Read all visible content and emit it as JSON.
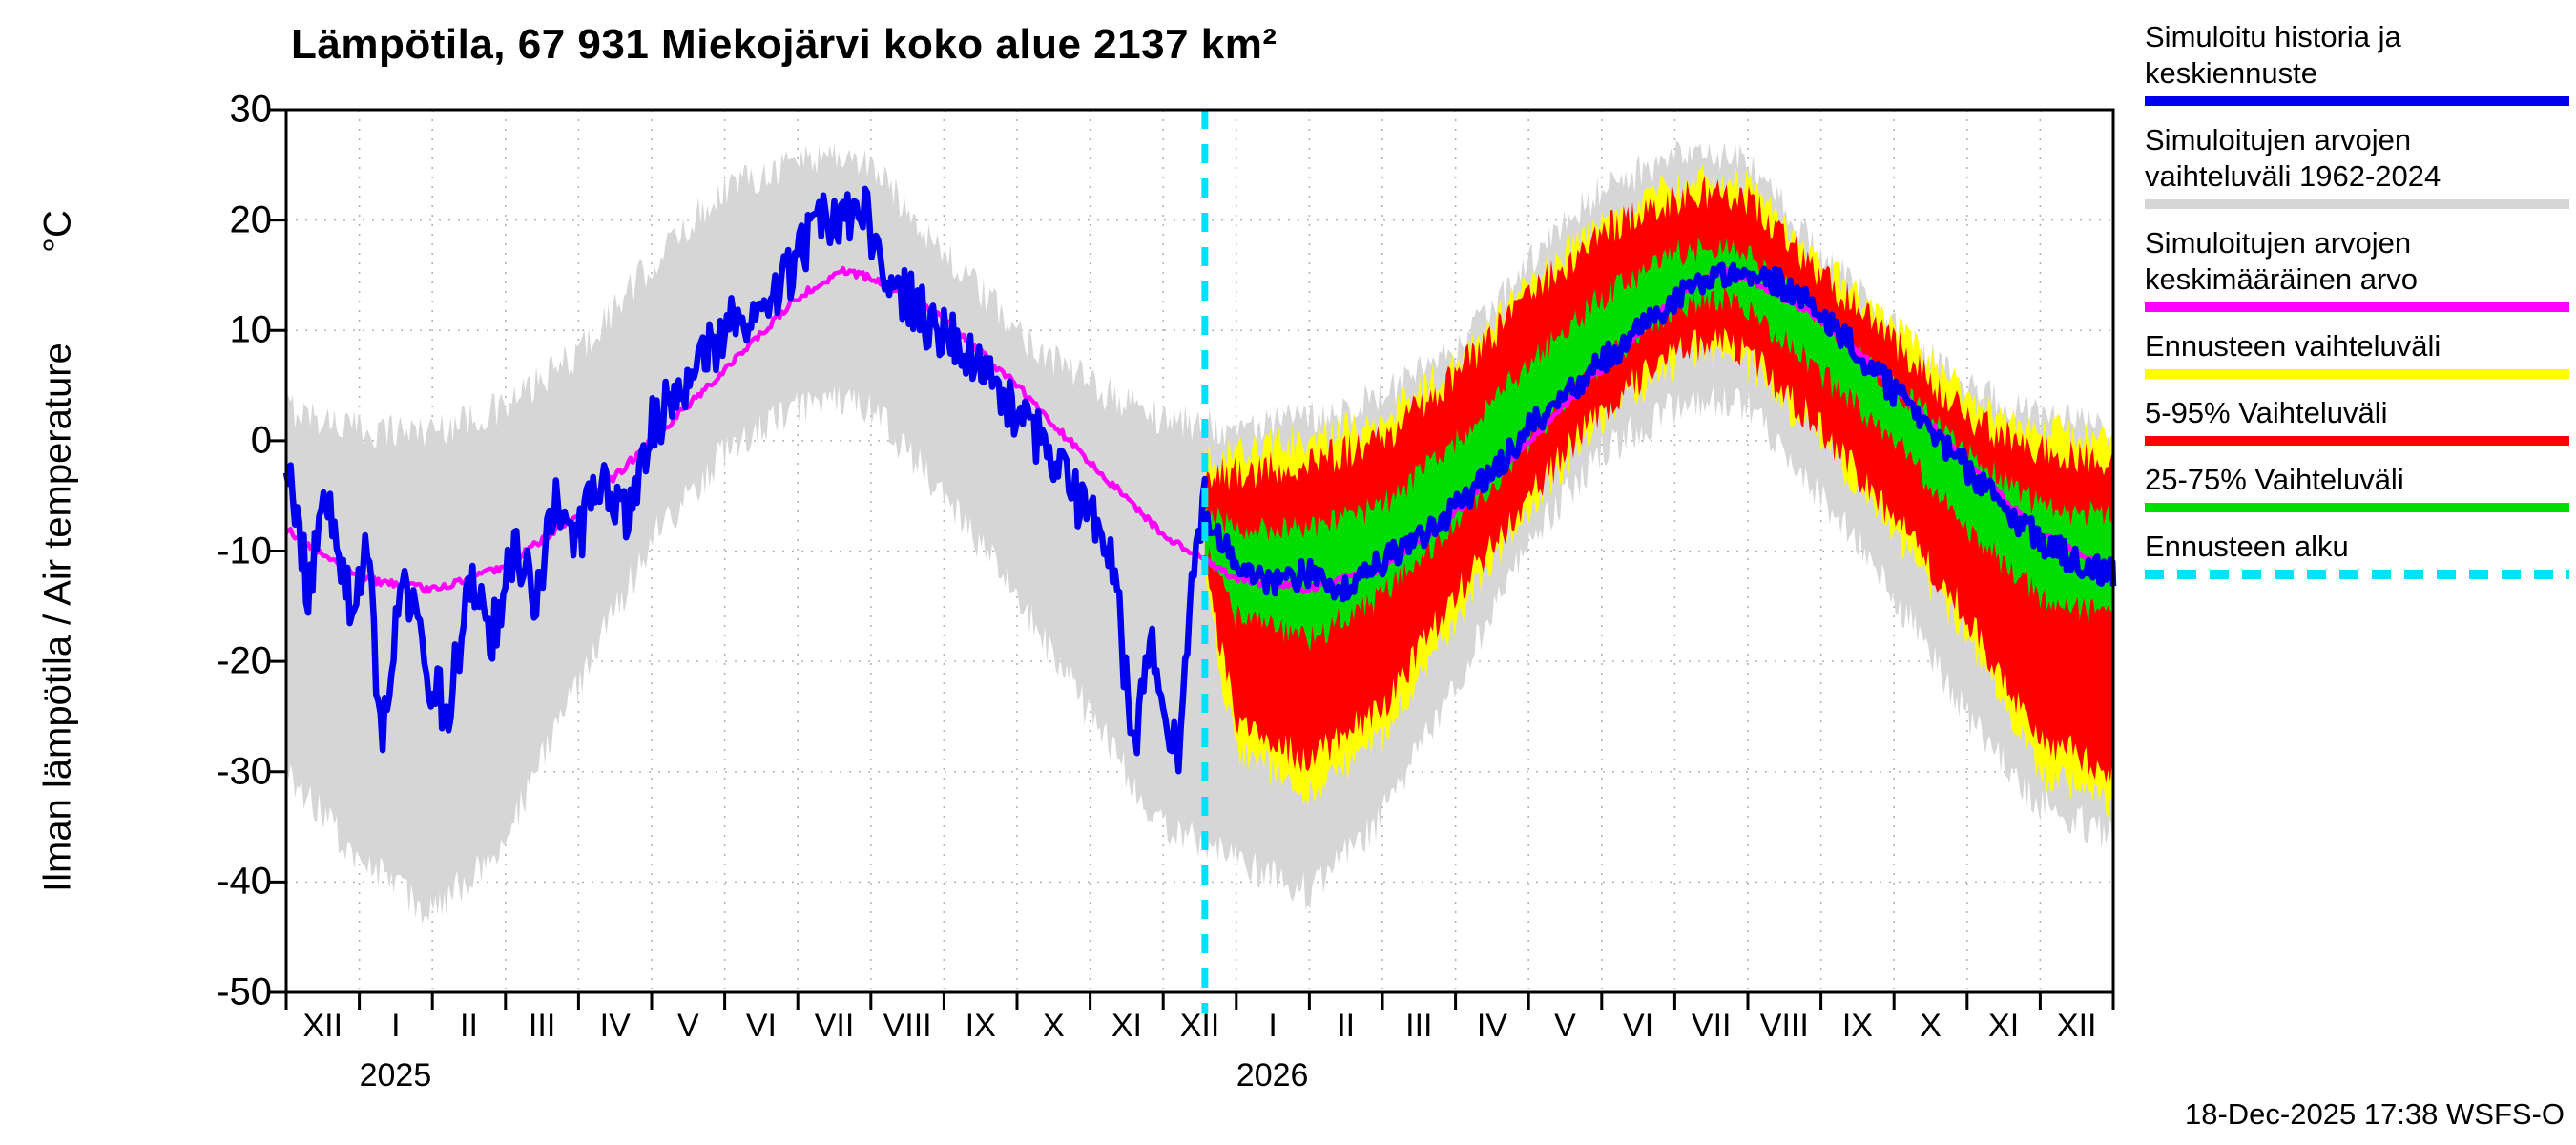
{
  "chart_data": {
    "type": "line",
    "title": "Lämpötila, 67 931 Miekojärvi koko alue 2137 km²",
    "ylabel": "Ilman lämpötila / Air temperature",
    "ylabel_unit": "°C",
    "ylim": [
      -50,
      30
    ],
    "yticks": [
      30,
      20,
      10,
      0,
      -10,
      -20,
      -30,
      -40,
      -50
    ],
    "x_months_total": 25,
    "month_labels": [
      "XII",
      "I",
      "II",
      "III",
      "IV",
      "V",
      "VI",
      "VII",
      "VIII",
      "IX",
      "X",
      "XI",
      "XII",
      "I",
      "II",
      "III",
      "IV",
      "V",
      "VI",
      "VII",
      "VIII",
      "IX",
      "X",
      "XI",
      "XII"
    ],
    "year_labels": [
      {
        "text": "2025",
        "at_month_boundary": 1
      },
      {
        "text": "2026",
        "at_month_boundary": 13
      }
    ],
    "forecast_start_x": 12.57,
    "grid": true,
    "legend_position": "right",
    "timestamp": "18-Dec-2025 17:38 WSFS-O",
    "colors": {
      "history_line": "#0000ee",
      "history_range": "#d6d6d6",
      "history_mean": "#ff00ff",
      "forecast_range": "#ffff00",
      "range_5_95": "#ff0000",
      "range_25_75": "#00dd00",
      "forecast_start": "#00e0ff",
      "grid": "#b3b3b3",
      "frame": "#000000"
    },
    "bands": [
      {
        "name": "sim-range-1962-2024",
        "color": "#d6d6d6",
        "noise": 1.7,
        "x": [
          0,
          1,
          2,
          3,
          4,
          5,
          6,
          7,
          7.5,
          8,
          9,
          10,
          11,
          12,
          13,
          14,
          15,
          16,
          17,
          18,
          19,
          19.5,
          20,
          21,
          22,
          23,
          24,
          25
        ],
        "upper": [
          3,
          1,
          1,
          3,
          8,
          16,
          23,
          25.5,
          26,
          25,
          17,
          10,
          5,
          2,
          1,
          2,
          4,
          8,
          16,
          23,
          25.5,
          26,
          25,
          17,
          10,
          5,
          2,
          1
        ],
        "lower": [
          -30,
          -38,
          -43,
          -36,
          -22,
          -9,
          -1,
          3,
          4,
          3,
          -5,
          -14,
          -25,
          -35,
          -38,
          -41,
          -34,
          -22,
          -9,
          -1,
          3,
          4,
          3,
          -5,
          -14,
          -25,
          -33,
          -36
        ]
      },
      {
        "name": "forecast-range",
        "color": "#ffff00",
        "noise": 1.7,
        "x": [
          12.57,
          13,
          14,
          15,
          16,
          17,
          18,
          19,
          19.5,
          20,
          21,
          22,
          23,
          24,
          25
        ],
        "upper": [
          -2,
          -1,
          0,
          2,
          7,
          14,
          20,
          23,
          23.5,
          23,
          16,
          10,
          4,
          1,
          0
        ],
        "lower": [
          -13,
          -28,
          -32,
          -27,
          -16,
          -6,
          2,
          7,
          8,
          7,
          0,
          -8,
          -18,
          -30,
          -33
        ]
      },
      {
        "name": "range-5-95",
        "color": "#ff0000",
        "noise": 1.6,
        "x": [
          12.57,
          13,
          14,
          15,
          16,
          17,
          18,
          19,
          19.5,
          20,
          21,
          22,
          23,
          24,
          25
        ],
        "upper": [
          -3,
          -3,
          -2,
          0,
          6,
          13,
          19,
          22,
          22.5,
          22,
          15,
          9,
          2,
          -1,
          -2
        ],
        "lower": [
          -12,
          -25,
          -29,
          -24,
          -14,
          -5,
          3,
          8,
          9,
          8,
          1,
          -7,
          -16,
          -27,
          -30
        ]
      },
      {
        "name": "range-25-75",
        "color": "#00dd00",
        "noise": 1.3,
        "x": [
          12.57,
          13,
          14,
          15,
          16,
          17,
          18,
          19,
          19.5,
          20,
          21,
          22,
          23,
          24,
          25
        ],
        "upper": [
          -6,
          -8,
          -8,
          -6,
          0,
          7,
          13,
          17,
          17.5,
          17,
          11,
          5,
          -1,
          -6,
          -7
        ],
        "lower": [
          -10,
          -16,
          -18,
          -14,
          -8,
          0,
          7,
          12,
          13,
          12,
          6,
          0,
          -8,
          -14,
          -16
        ]
      }
    ],
    "lines": [
      {
        "name": "sim-mean-1962-2024",
        "color": "#ff00ff",
        "width": 4.5,
        "noise": 0.35,
        "x": [
          0,
          1,
          2,
          3,
          4,
          5,
          6,
          7,
          7.6,
          8,
          9,
          10,
          11,
          12,
          13,
          14,
          15,
          16,
          17,
          18,
          19,
          19.6,
          20,
          21,
          22,
          23,
          24,
          25
        ],
        "y": [
          -8,
          -12.5,
          -13.5,
          -11.5,
          -6.5,
          0,
          6.5,
          13,
          15.4,
          14.8,
          11,
          5,
          -2,
          -8.5,
          -12.5,
          -13.5,
          -11.5,
          -6.5,
          0,
          6.5,
          13,
          15.4,
          14.8,
          11,
          5,
          -2,
          -8.5,
          -12
        ]
      },
      {
        "name": "sim-history",
        "color": "#0000ee",
        "width": 6.5,
        "noise": 2.8,
        "x": [
          0,
          0.3,
          0.6,
          0.9,
          1.1,
          1.3,
          1.6,
          1.9,
          2.2,
          2.5,
          2.8,
          3.1,
          3.4,
          3.7,
          4.0,
          4.3,
          4.6,
          5.0,
          5.4,
          5.8,
          6.2,
          6.6,
          7.0,
          7.3,
          7.6,
          7.9,
          8.2,
          8.5,
          8.9,
          9.3,
          9.7,
          10.1,
          10.5,
          10.9,
          11.3,
          11.6,
          11.8,
          12.0,
          12.2,
          12.4,
          12.57
        ],
        "y": [
          -3,
          -13,
          -5,
          -16,
          -8,
          -27,
          -12,
          -20,
          -25,
          -13,
          -18,
          -10,
          -14,
          -6,
          -9,
          -3,
          -7,
          1,
          5,
          8,
          11,
          13,
          16,
          21,
          19,
          22,
          15,
          13,
          10,
          8,
          5,
          2,
          -2,
          -6,
          -10,
          -28,
          -18,
          -24,
          -29,
          -14,
          -6
        ]
      },
      {
        "name": "forecast-median",
        "color": "#0000ee",
        "width": 6.5,
        "noise": 1.3,
        "x": [
          12.57,
          13,
          13.5,
          14,
          14.5,
          15,
          15.5,
          16,
          16.5,
          17,
          17.5,
          18,
          18.5,
          19,
          19.5,
          20,
          20.5,
          21,
          21.5,
          22,
          22.5,
          23,
          23.5,
          24,
          24.5,
          25
        ],
        "y": [
          -7,
          -11,
          -13,
          -12,
          -13.5,
          -11,
          -9,
          -6,
          -3,
          1,
          4,
          7,
          10,
          13,
          15,
          15.5,
          14,
          11.5,
          8,
          4.5,
          1,
          -2.5,
          -6,
          -9,
          -11,
          -12
        ]
      }
    ],
    "legend": [
      {
        "name": "sim-history",
        "lines": [
          "Simuloitu historia ja",
          "keskiennuste"
        ],
        "color": "#0000ee",
        "style": "solid"
      },
      {
        "name": "sim-range",
        "lines": [
          "Simuloitujen arvojen",
          "vaihteluväli 1962-2024"
        ],
        "color": "#d6d6d6",
        "style": "solid"
      },
      {
        "name": "sim-mean",
        "lines": [
          "Simuloitujen arvojen",
          "keskimääräinen arvo"
        ],
        "color": "#ff00ff",
        "style": "solid"
      },
      {
        "name": "forecast-range",
        "lines": [
          "Ennusteen vaihteluväli"
        ],
        "color": "#ffff00",
        "style": "solid"
      },
      {
        "name": "range-5-95",
        "lines": [
          "5-95% Vaihteluväli"
        ],
        "color": "#ff0000",
        "style": "solid"
      },
      {
        "name": "range-25-75",
        "lines": [
          "25-75% Vaihteluväli"
        ],
        "color": "#00dd00",
        "style": "solid"
      },
      {
        "name": "forecast-start",
        "lines": [
          "Ennusteen alku"
        ],
        "color": "#00e0ff",
        "style": "dashed"
      }
    ]
  }
}
